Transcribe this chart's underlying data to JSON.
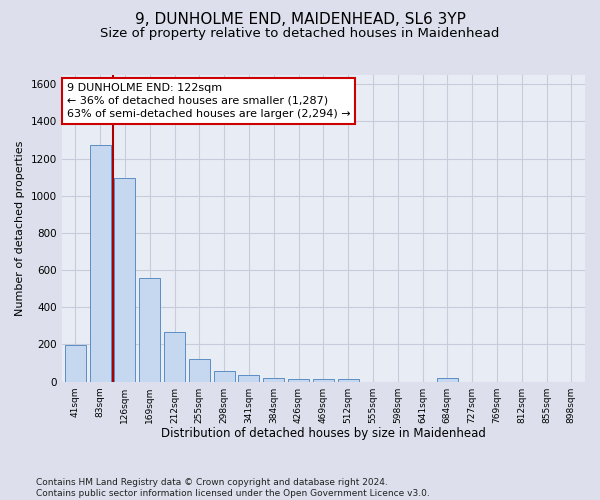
{
  "title": "9, DUNHOLME END, MAIDENHEAD, SL6 3YP",
  "subtitle": "Size of property relative to detached houses in Maidenhead",
  "xlabel": "Distribution of detached houses by size in Maidenhead",
  "ylabel": "Number of detached properties",
  "categories": [
    "41sqm",
    "83sqm",
    "126sqm",
    "169sqm",
    "212sqm",
    "255sqm",
    "298sqm",
    "341sqm",
    "384sqm",
    "426sqm",
    "469sqm",
    "512sqm",
    "555sqm",
    "598sqm",
    "641sqm",
    "684sqm",
    "727sqm",
    "769sqm",
    "812sqm",
    "855sqm",
    "898sqm"
  ],
  "values": [
    197,
    1275,
    1098,
    557,
    267,
    120,
    57,
    33,
    22,
    15,
    15,
    15,
    0,
    0,
    0,
    18,
    0,
    0,
    0,
    0,
    0
  ],
  "bar_color": "#c5d8f0",
  "bar_edge_color": "#5b8ec4",
  "vline_color": "#aa0000",
  "annotation_line1": "9 DUNHOLME END: 122sqm",
  "annotation_line2": "← 36% of detached houses are smaller (1,287)",
  "annotation_line3": "63% of semi-detached houses are larger (2,294) →",
  "annotation_box_color": "#ffffff",
  "annotation_box_edge_color": "#cc0000",
  "ylim": [
    0,
    1650
  ],
  "yticks": [
    0,
    200,
    400,
    600,
    800,
    1000,
    1200,
    1400,
    1600
  ],
  "bg_color": "#dde0ec",
  "plot_bg_color": "#e8ecf5",
  "grid_color": "#c8ccda",
  "footnote": "Contains HM Land Registry data © Crown copyright and database right 2024.\nContains public sector information licensed under the Open Government Licence v3.0.",
  "title_fontsize": 11,
  "subtitle_fontsize": 9.5,
  "xlabel_fontsize": 8.5,
  "ylabel_fontsize": 8,
  "annotation_fontsize": 8,
  "footnote_fontsize": 6.5
}
